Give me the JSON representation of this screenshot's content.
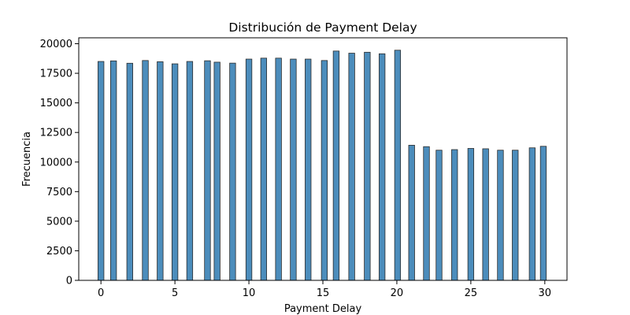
{
  "chart_data": {
    "type": "bar",
    "title": "Distribución de Payment Delay",
    "xlabel": "Payment Delay",
    "ylabel": "Frecuencia",
    "xlim": [
      -1.5,
      31.5
    ],
    "ylim": [
      0,
      20500
    ],
    "xticks": [
      0,
      5,
      10,
      15,
      20,
      25,
      30
    ],
    "yticks": [
      0,
      2500,
      5000,
      7500,
      10000,
      12500,
      15000,
      17500,
      20000
    ],
    "bar_width": 0.4,
    "bar_color": "#4c8dbc",
    "edge_color": "#2b2b2b",
    "grid": false,
    "x": [
      0,
      0.85,
      1.95,
      3,
      4,
      5,
      6,
      7.2,
      7.85,
      8.9,
      10,
      11,
      12,
      13,
      14,
      15.1,
      15.9,
      16.95,
      18,
      19,
      20.05,
      21,
      22,
      22.85,
      23.9,
      25,
      26,
      27,
      28,
      29.15,
      29.9
    ],
    "values": [
      18500,
      18550,
      18350,
      18580,
      18480,
      18300,
      18500,
      18560,
      18440,
      18360,
      18700,
      18780,
      18780,
      18700,
      18700,
      18580,
      19380,
      19200,
      19280,
      19150,
      19450,
      11420,
      11300,
      11000,
      11050,
      11150,
      11120,
      11000,
      11000,
      11200,
      11330
    ]
  }
}
